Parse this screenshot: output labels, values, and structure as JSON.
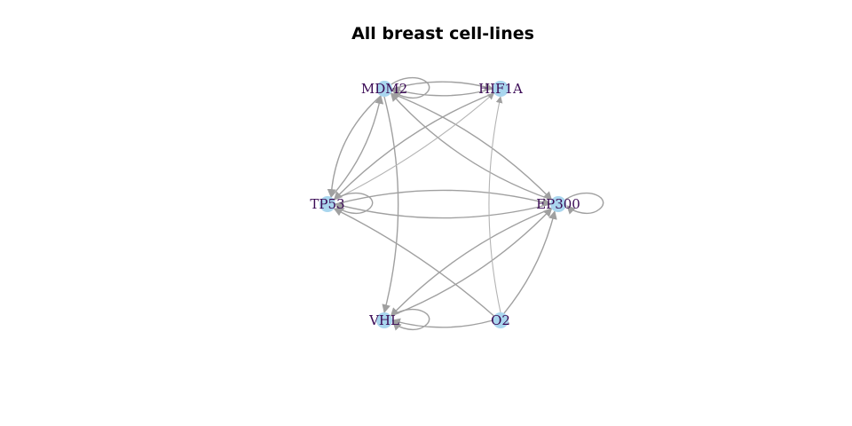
{
  "title": "All breast cell-lines",
  "colors": {
    "node_fill": "#a9d6ee",
    "edge": "#a0a0a0",
    "label": "#3a0a55"
  },
  "nodes": [
    {
      "id": "MDM2",
      "label": "MDM2"
    },
    {
      "id": "HIF1A",
      "label": "HIF1A"
    },
    {
      "id": "TP53",
      "label": "TP53"
    },
    {
      "id": "EP300",
      "label": "EP300"
    },
    {
      "id": "VHL",
      "label": "VHL"
    },
    {
      "id": "O2",
      "label": "O2"
    }
  ],
  "edges": [
    {
      "from": "MDM2",
      "to": "MDM2"
    },
    {
      "from": "MDM2",
      "to": "HIF1A"
    },
    {
      "from": "HIF1A",
      "to": "MDM2"
    },
    {
      "from": "MDM2",
      "to": "TP53"
    },
    {
      "from": "TP53",
      "to": "MDM2"
    },
    {
      "from": "MDM2",
      "to": "EP300"
    },
    {
      "from": "EP300",
      "to": "MDM2"
    },
    {
      "from": "MDM2",
      "to": "VHL"
    },
    {
      "from": "HIF1A",
      "to": "TP53"
    },
    {
      "from": "TP53",
      "to": "HIF1A"
    },
    {
      "from": "TP53",
      "to": "TP53"
    },
    {
      "from": "TP53",
      "to": "EP300"
    },
    {
      "from": "EP300",
      "to": "TP53"
    },
    {
      "from": "EP300",
      "to": "EP300"
    },
    {
      "from": "EP300",
      "to": "VHL"
    },
    {
      "from": "VHL",
      "to": "VHL"
    },
    {
      "from": "VHL",
      "to": "EP300"
    },
    {
      "from": "O2",
      "to": "TP53"
    },
    {
      "from": "O2",
      "to": "HIF1A"
    },
    {
      "from": "O2",
      "to": "VHL"
    },
    {
      "from": "O2",
      "to": "EP300"
    }
  ]
}
